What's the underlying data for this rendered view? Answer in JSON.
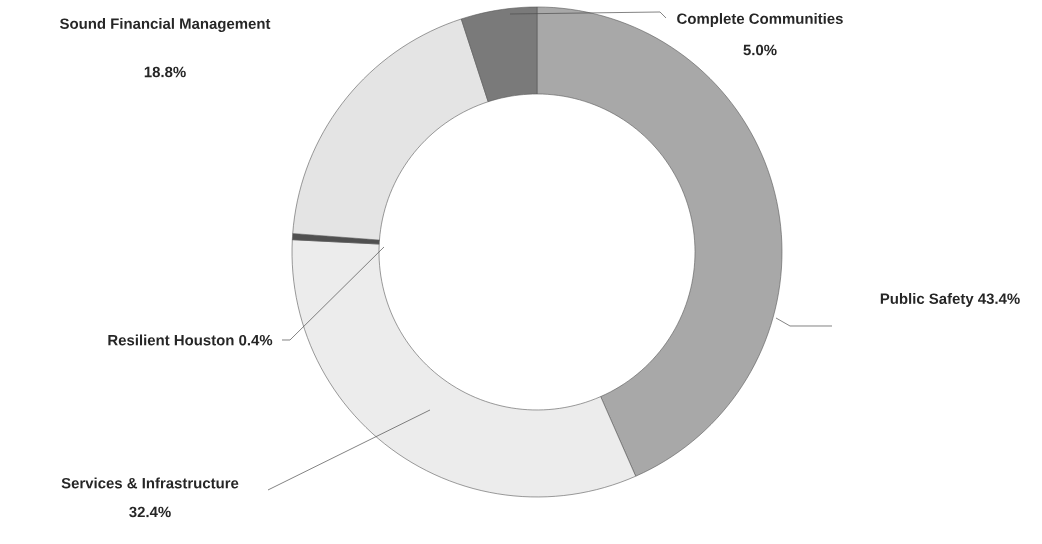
{
  "chart_data": {
    "type": "donut",
    "categories": [
      "Public Safety",
      "Services & Infrastructure",
      "Resilient Houston",
      "Sound Financial Management",
      "Complete Communities"
    ],
    "values": [
      43.4,
      32.4,
      0.4,
      18.8,
      5.0
    ],
    "value_labels": [
      "43.4%",
      "32.4%",
      "0.4%",
      "18.8%",
      "5.0%"
    ],
    "colors": [
      "#a8a8a8",
      "#ececec",
      "#505050",
      "#e4e4e4",
      "#7a7a7a"
    ]
  }
}
